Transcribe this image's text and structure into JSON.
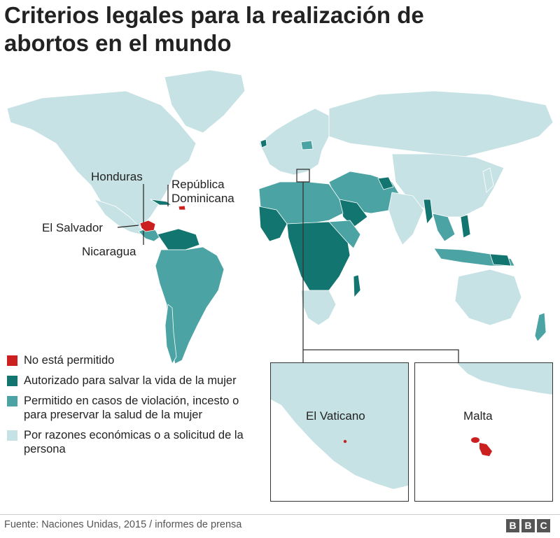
{
  "title": "Criterios legales para la realización de abortos en el mundo",
  "colors": {
    "not_permitted": "#cc1f1f",
    "save_life": "#13756f",
    "rape_health": "#4ba3a4",
    "on_request": "#c7e2e4",
    "border": "#ffffff",
    "water": "#ffffff"
  },
  "map_labels": {
    "honduras": "Honduras",
    "republica_dominicana_1": "República",
    "republica_dominicana_2": "Dominicana",
    "el_salvador": "El Salvador",
    "nicaragua": "Nicaragua"
  },
  "legend": [
    {
      "category": "not_permitted",
      "label": "No está permitido"
    },
    {
      "category": "save_life",
      "label": "Autorizado para salvar la vida de la mujer"
    },
    {
      "category": "rape_health",
      "label": "Permitido en casos de violación, incesto o para preservar la salud de la mujer"
    },
    {
      "category": "on_request",
      "label": "Por razones económicas o a solicitud de la persona"
    }
  ],
  "insets": {
    "vatican": "El Vaticano",
    "malta": "Malta"
  },
  "footer": {
    "source": "Fuente: Naciones Unidas, 2015 / informes de prensa",
    "logo_letters": [
      "B",
      "B",
      "C"
    ]
  }
}
